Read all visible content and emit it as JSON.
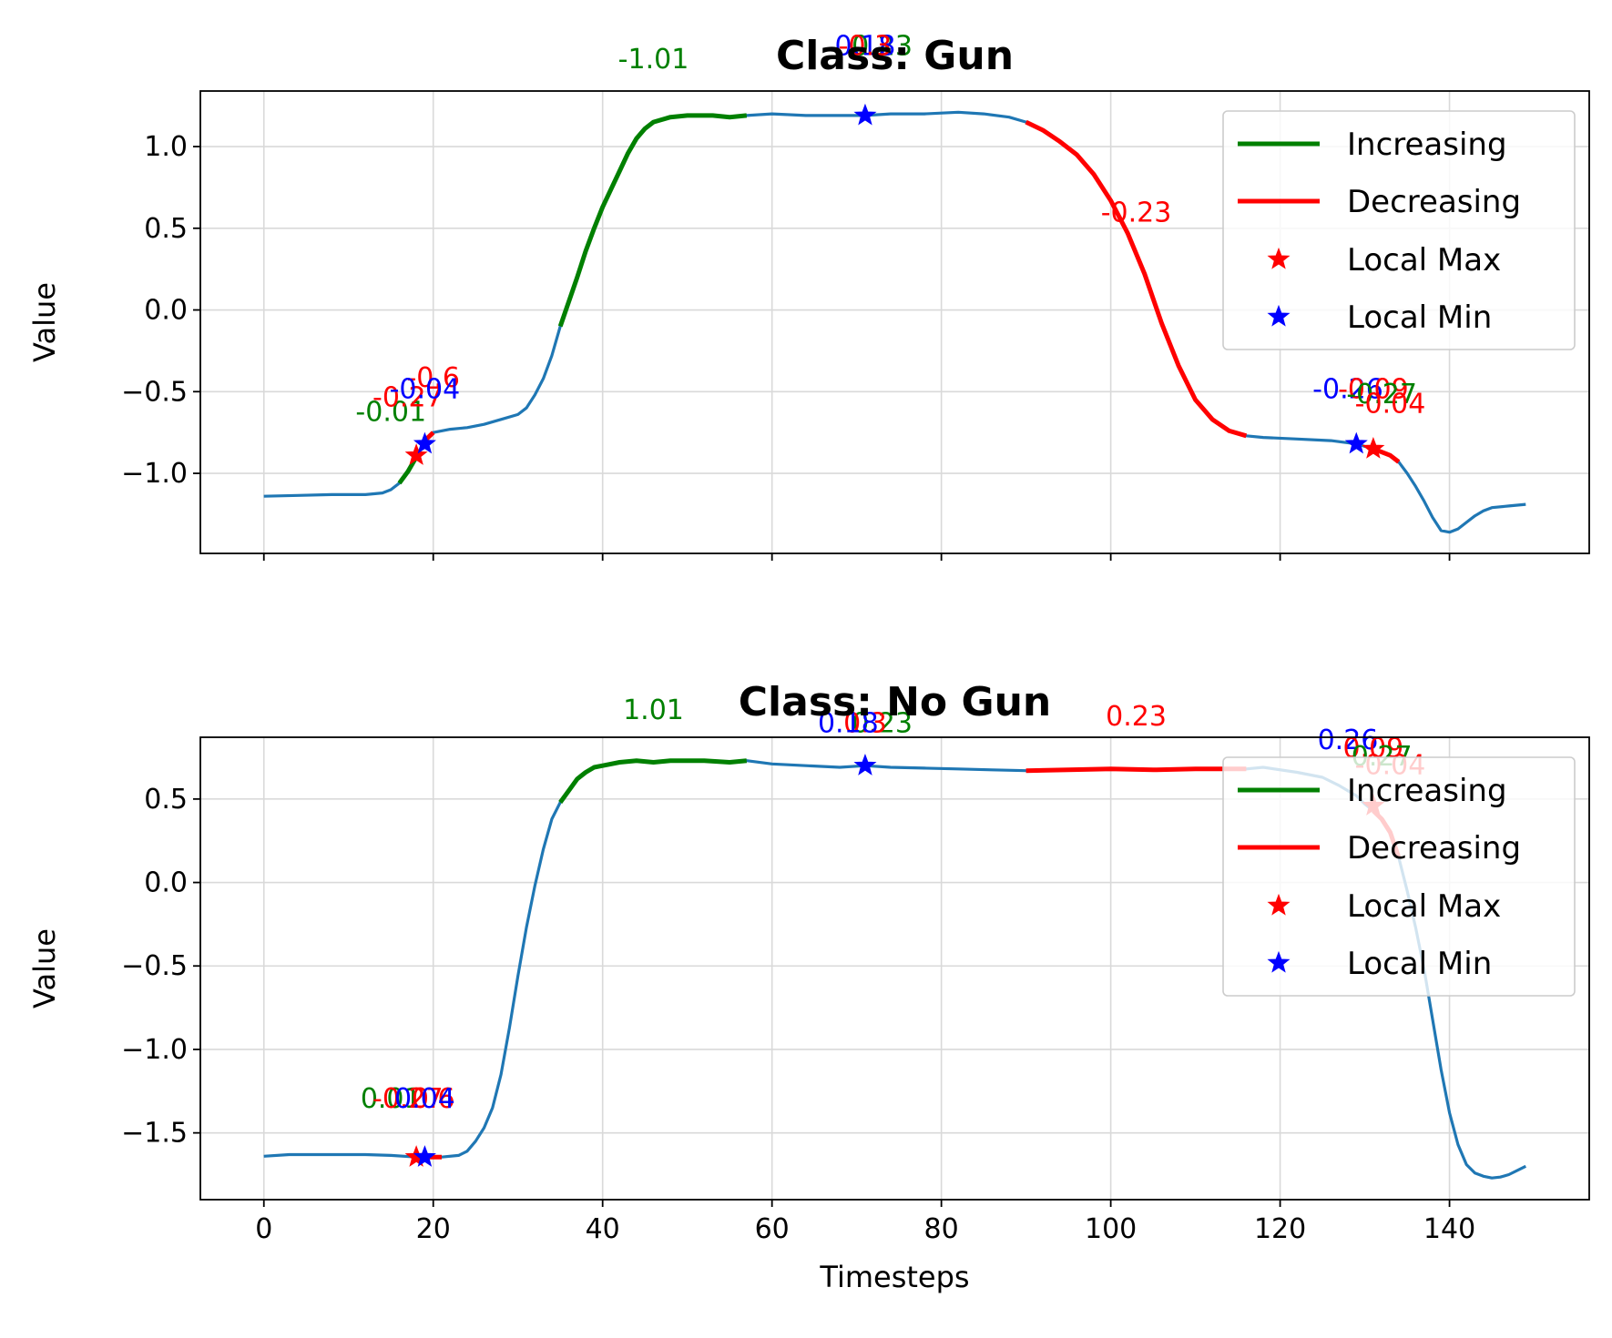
{
  "chart_data": [
    {
      "type": "line",
      "title": "Class: Gun",
      "ylabel": "Value",
      "xlabel": "",
      "xlim": [
        -7.5,
        156.5
      ],
      "ylim": [
        -1.49,
        1.34
      ],
      "xticks": [
        0,
        20,
        40,
        60,
        80,
        100,
        120,
        140
      ],
      "show_xtick_labels": false,
      "yticks": [
        -1.0,
        -0.5,
        0.0,
        0.5,
        1.0
      ],
      "ytick_labels": [
        "−1.0",
        "−0.5",
        "0.0",
        "0.5",
        "1.0"
      ],
      "grid": true,
      "legend": {
        "placement": "upper right",
        "entries": [
          "Increasing",
          "Decreasing",
          "Local Max",
          "Local Min"
        ]
      },
      "series": [
        {
          "role": "signal",
          "color": "#1f77b4",
          "points": [
            [
              0,
              -1.14
            ],
            [
              4,
              -1.135
            ],
            [
              8,
              -1.13
            ],
            [
              12,
              -1.13
            ],
            [
              14,
              -1.12
            ],
            [
              15,
              -1.1
            ],
            [
              16,
              -1.06
            ],
            [
              17,
              -0.99
            ],
            [
              18,
              -0.9
            ],
            [
              19,
              -0.8
            ],
            [
              20,
              -0.75
            ],
            [
              22,
              -0.73
            ],
            [
              24,
              -0.72
            ],
            [
              26,
              -0.7
            ],
            [
              28,
              -0.67
            ],
            [
              30,
              -0.64
            ],
            [
              31,
              -0.6
            ],
            [
              32,
              -0.52
            ],
            [
              33,
              -0.42
            ],
            [
              34,
              -0.28
            ],
            [
              35,
              -0.1
            ],
            [
              36,
              0.05
            ],
            [
              37,
              0.2
            ],
            [
              38,
              0.36
            ],
            [
              39,
              0.5
            ],
            [
              40,
              0.63
            ],
            [
              41,
              0.74
            ],
            [
              42,
              0.85
            ],
            [
              43,
              0.96
            ],
            [
              44,
              1.05
            ],
            [
              45,
              1.11
            ],
            [
              46,
              1.15
            ],
            [
              48,
              1.18
            ],
            [
              50,
              1.19
            ],
            [
              53,
              1.19
            ],
            [
              55,
              1.18
            ],
            [
              57,
              1.19
            ],
            [
              60,
              1.2
            ],
            [
              64,
              1.19
            ],
            [
              68,
              1.19
            ],
            [
              71,
              1.19
            ],
            [
              74,
              1.2
            ],
            [
              78,
              1.2
            ],
            [
              82,
              1.21
            ],
            [
              85,
              1.2
            ],
            [
              88,
              1.18
            ],
            [
              90,
              1.15
            ],
            [
              92,
              1.1
            ],
            [
              94,
              1.03
            ],
            [
              96,
              0.95
            ],
            [
              98,
              0.83
            ],
            [
              100,
              0.67
            ],
            [
              102,
              0.47
            ],
            [
              104,
              0.22
            ],
            [
              106,
              -0.08
            ],
            [
              108,
              -0.34
            ],
            [
              110,
              -0.55
            ],
            [
              112,
              -0.67
            ],
            [
              114,
              -0.74
            ],
            [
              116,
              -0.77
            ],
            [
              118,
              -0.78
            ],
            [
              122,
              -0.79
            ],
            [
              126,
              -0.8
            ],
            [
              129,
              -0.82
            ],
            [
              131,
              -0.85
            ],
            [
              133,
              -0.89
            ],
            [
              134,
              -0.93
            ],
            [
              135,
              -1.0
            ],
            [
              136,
              -1.08
            ],
            [
              137,
              -1.17
            ],
            [
              138,
              -1.27
            ],
            [
              139,
              -1.35
            ],
            [
              140,
              -1.36
            ],
            [
              141,
              -1.34
            ],
            [
              142,
              -1.3
            ],
            [
              143,
              -1.26
            ],
            [
              144,
              -1.23
            ],
            [
              145,
              -1.21
            ],
            [
              147,
              -1.2
            ],
            [
              149,
              -1.19
            ]
          ]
        },
        {
          "role": "increasing",
          "color": "green",
          "x_range": [
            16,
            18
          ]
        },
        {
          "role": "increasing",
          "color": "green",
          "x_range": [
            35,
            57
          ]
        },
        {
          "role": "increasing",
          "color": "green",
          "x_range": [
            71,
            73
          ]
        },
        {
          "role": "decreasing",
          "color": "red",
          "x_range": [
            19,
            21
          ]
        },
        {
          "role": "decreasing",
          "color": "red",
          "x_range": [
            90,
            116
          ]
        },
        {
          "role": "decreasing",
          "color": "red",
          "x_range": [
            131,
            134
          ]
        },
        {
          "role": "local_max",
          "color": "red",
          "points": [
            [
              18,
              -0.89
            ],
            [
              131,
              -0.85
            ]
          ]
        },
        {
          "role": "local_min",
          "color": "blue",
          "points": [
            [
              19,
              -0.82
            ],
            [
              71,
              1.19
            ],
            [
              129,
              -0.82
            ]
          ]
        }
      ],
      "annotations": [
        {
          "text": "-1.01",
          "color": "green",
          "x": 46,
          "y": 1.48
        },
        {
          "text": "0.23",
          "color": "green",
          "x": 73,
          "y": 1.56
        },
        {
          "text": "0.18",
          "color": "blue",
          "x": 71,
          "y": 1.56
        },
        {
          "text": "-0.3",
          "color": "red",
          "x": 71,
          "y": 1.56
        },
        {
          "text": "-0.23",
          "color": "red",
          "x": 103,
          "y": 0.54
        },
        {
          "text": "-0.01",
          "color": "green",
          "x": 15,
          "y": -0.68
        },
        {
          "text": "-0.27",
          "color": "red",
          "x": 17,
          "y": -0.59
        },
        {
          "text": "-0.6",
          "color": "red",
          "x": 20,
          "y": -0.47
        },
        {
          "text": "-0.04",
          "color": "blue",
          "x": 19,
          "y": -0.54
        },
        {
          "text": "-0.26",
          "color": "blue",
          "x": 128,
          "y": -0.54
        },
        {
          "text": "-0.09",
          "color": "red",
          "x": 131,
          "y": -0.54
        },
        {
          "text": "-0.27",
          "color": "green",
          "x": 132,
          "y": -0.57
        },
        {
          "text": "-0.04",
          "color": "red",
          "x": 133,
          "y": -0.63
        }
      ]
    },
    {
      "type": "line",
      "title": "Class: No Gun",
      "ylabel": "Value",
      "xlabel": "Timesteps",
      "xlim": [
        -7.5,
        156.5
      ],
      "ylim": [
        -1.9,
        0.87
      ],
      "xticks": [
        0,
        20,
        40,
        60,
        80,
        100,
        120,
        140
      ],
      "xtick_labels": [
        "0",
        "20",
        "40",
        "60",
        "80",
        "100",
        "120",
        "140"
      ],
      "yticks": [
        -1.5,
        -1.0,
        -0.5,
        0.0,
        0.5
      ],
      "ytick_labels": [
        "−1.5",
        "−1.0",
        "−0.5",
        "0.0",
        "0.5"
      ],
      "grid": true,
      "legend": {
        "placement": "upper right",
        "entries": [
          "Increasing",
          "Decreasing",
          "Local Max",
          "Local Min"
        ]
      },
      "series": [
        {
          "role": "signal",
          "color": "#1f77b4",
          "points": [
            [
              0,
              -1.64
            ],
            [
              3,
              -1.63
            ],
            [
              6,
              -1.63
            ],
            [
              9,
              -1.63
            ],
            [
              12,
              -1.63
            ],
            [
              15,
              -1.635
            ],
            [
              18,
              -1.645
            ],
            [
              19,
              -1.645
            ],
            [
              21,
              -1.645
            ],
            [
              23,
              -1.635
            ],
            [
              24,
              -1.61
            ],
            [
              25,
              -1.55
            ],
            [
              26,
              -1.47
            ],
            [
              27,
              -1.35
            ],
            [
              28,
              -1.15
            ],
            [
              29,
              -0.87
            ],
            [
              30,
              -0.56
            ],
            [
              31,
              -0.27
            ],
            [
              32,
              -0.02
            ],
            [
              33,
              0.2
            ],
            [
              34,
              0.38
            ],
            [
              35,
              0.48
            ],
            [
              36,
              0.55
            ],
            [
              37,
              0.62
            ],
            [
              38,
              0.66
            ],
            [
              39,
              0.69
            ],
            [
              40,
              0.7
            ],
            [
              42,
              0.72
            ],
            [
              44,
              0.73
            ],
            [
              46,
              0.72
            ],
            [
              48,
              0.73
            ],
            [
              52,
              0.73
            ],
            [
              55,
              0.72
            ],
            [
              57,
              0.73
            ],
            [
              60,
              0.71
            ],
            [
              64,
              0.7
            ],
            [
              68,
              0.69
            ],
            [
              71,
              0.7
            ],
            [
              74,
              0.69
            ],
            [
              78,
              0.685
            ],
            [
              82,
              0.68
            ],
            [
              86,
              0.675
            ],
            [
              90,
              0.67
            ],
            [
              95,
              0.675
            ],
            [
              100,
              0.68
            ],
            [
              105,
              0.675
            ],
            [
              110,
              0.68
            ],
            [
              114,
              0.68
            ],
            [
              116,
              0.68
            ],
            [
              118,
              0.69
            ],
            [
              122,
              0.66
            ],
            [
              125,
              0.63
            ],
            [
              127,
              0.58
            ],
            [
              129,
              0.52
            ],
            [
              130,
              0.47
            ],
            [
              131,
              0.43
            ],
            [
              132,
              0.38
            ],
            [
              133,
              0.3
            ],
            [
              134,
              0.15
            ],
            [
              135,
              -0.05
            ],
            [
              136,
              -0.27
            ],
            [
              137,
              -0.52
            ],
            [
              138,
              -0.82
            ],
            [
              139,
              -1.12
            ],
            [
              140,
              -1.38
            ],
            [
              141,
              -1.57
            ],
            [
              142,
              -1.69
            ],
            [
              143,
              -1.74
            ],
            [
              144,
              -1.76
            ],
            [
              145,
              -1.77
            ],
            [
              146,
              -1.765
            ],
            [
              147,
              -1.75
            ],
            [
              149,
              -1.7
            ]
          ]
        },
        {
          "role": "increasing",
          "color": "green",
          "x_range": [
            16,
            18
          ]
        },
        {
          "role": "increasing",
          "color": "green",
          "x_range": [
            35,
            57
          ]
        },
        {
          "role": "increasing",
          "color": "green",
          "x_range": [
            71,
            73
          ]
        },
        {
          "role": "decreasing",
          "color": "red",
          "x_range": [
            19,
            21
          ]
        },
        {
          "role": "decreasing",
          "color": "red",
          "x_range": [
            90,
            116
          ]
        },
        {
          "role": "decreasing",
          "color": "red",
          "x_range": [
            131,
            134
          ]
        },
        {
          "role": "local_max",
          "color": "red",
          "points": [
            [
              18,
              -1.645
            ],
            [
              131,
              0.46
            ]
          ]
        },
        {
          "role": "local_min",
          "color": "blue",
          "points": [
            [
              19,
              -1.645
            ],
            [
              71,
              0.7
            ]
          ]
        }
      ],
      "annotations": [
        {
          "text": "1.01",
          "color": "green",
          "x": 46,
          "y": 0.98
        },
        {
          "text": "0.23",
          "color": "green",
          "x": 73,
          "y": 0.9
        },
        {
          "text": "0.3",
          "color": "red",
          "x": 71,
          "y": 0.9
        },
        {
          "text": "0.18",
          "color": "blue",
          "x": 69,
          "y": 0.9
        },
        {
          "text": "0.23",
          "color": "red",
          "x": 103,
          "y": 0.94
        },
        {
          "text": "0.01",
          "color": "green",
          "x": 15,
          "y": -1.35
        },
        {
          "text": "-0.27",
          "color": "red",
          "x": 17,
          "y": -1.35
        },
        {
          "text": "0.6",
          "color": "red",
          "x": 20,
          "y": -1.35
        },
        {
          "text": "0.04",
          "color": "blue",
          "x": 19,
          "y": -1.35
        },
        {
          "text": "0.26",
          "color": "blue",
          "x": 128,
          "y": 0.8
        },
        {
          "text": "0.09",
          "color": "red",
          "x": 131,
          "y": 0.75
        },
        {
          "text": "0.27",
          "color": "green",
          "x": 132,
          "y": 0.7
        },
        {
          "text": "-0.04",
          "color": "red",
          "x": 133,
          "y": 0.65
        }
      ]
    }
  ]
}
